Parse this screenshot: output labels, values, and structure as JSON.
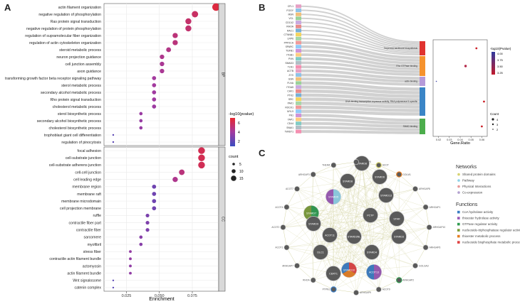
{
  "panels": {
    "a": "A",
    "b": "B",
    "c": "C"
  },
  "colors": {
    "grid": "#ebebeb",
    "strip": "#d9d9d9",
    "edge": "#d6d6a8",
    "node": "#5a5a5a"
  },
  "chart_data": [
    {
      "type": "scatter",
      "panel": "A",
      "xlabel": "Enrichment",
      "xlim": [
        0.008,
        0.095
      ],
      "xticks": [
        "0.025",
        "0.050",
        "0.075"
      ],
      "xtick_values": [
        0.025,
        0.05,
        0.075
      ],
      "color_legend_title": "-log10(pvalue)",
      "color_legend_ticks": [
        "6",
        "4",
        "2"
      ],
      "size_legend_title": "count",
      "size_legend_ticks": [
        "5",
        "10",
        "15"
      ],
      "facets": [
        {
          "strip": "BP",
          "terms": [
            {
              "label": "actin filament organization",
              "x": 0.093,
              "c": 7.0
            },
            {
              "label": "negative regulation of phosphorylation",
              "x": 0.077,
              "c": 6.0
            },
            {
              "label": "Ras protein signal transduction",
              "x": 0.072,
              "c": 5.8
            },
            {
              "label": "negative regulation of protein phosphorylation",
              "x": 0.072,
              "c": 5.7
            },
            {
              "label": "regulation of supramolecular fiber organization",
              "x": 0.062,
              "c": 5.4
            },
            {
              "label": "regulation of actin cytoskeleton organization",
              "x": 0.062,
              "c": 5.3
            },
            {
              "label": "steroid metabolic process",
              "x": 0.057,
              "c": 5.0
            },
            {
              "label": "neuron projection guidance",
              "x": 0.052,
              "c": 4.8
            },
            {
              "label": "cell junction assembly",
              "x": 0.052,
              "c": 4.6
            },
            {
              "label": "axon guidance",
              "x": 0.052,
              "c": 4.6
            },
            {
              "label": "transforming growth factor beta receptor signaling pathway",
              "x": 0.046,
              "c": 4.3
            },
            {
              "label": "sterol metabolic process",
              "x": 0.046,
              "c": 4.3
            },
            {
              "label": "secondary alcohol metabolic process",
              "x": 0.046,
              "c": 4.2
            },
            {
              "label": "Rho protein signal transduction",
              "x": 0.046,
              "c": 4.2
            },
            {
              "label": "cholesterol metabolic process",
              "x": 0.046,
              "c": 4.1
            },
            {
              "label": "sterol biosynthetic process",
              "x": 0.036,
              "c": 4.0
            },
            {
              "label": "secondary alcohol biosynthetic process",
              "x": 0.036,
              "c": 3.9
            },
            {
              "label": "cholesterol biosynthetic process",
              "x": 0.036,
              "c": 3.9
            },
            {
              "label": "trophoblast giant cell differentiation",
              "x": 0.015,
              "c": 2.0
            },
            {
              "label": "regulation of pinocytosis",
              "x": 0.015,
              "c": 2.0
            }
          ]
        },
        {
          "strip": "CC",
          "terms": [
            {
              "label": "focal adhesion",
              "x": 0.082,
              "c": 6.5
            },
            {
              "label": "cell-substrate junction",
              "x": 0.082,
              "c": 6.5
            },
            {
              "label": "cell-substrate adherens junction",
              "x": 0.082,
              "c": 6.4
            },
            {
              "label": "cell-cell junction",
              "x": 0.067,
              "c": 5.3
            },
            {
              "label": "cell leading edge",
              "x": 0.062,
              "c": 4.8
            },
            {
              "label": "membrane region",
              "x": 0.046,
              "c": 2.6
            },
            {
              "label": "membrane raft",
              "x": 0.046,
              "c": 2.6
            },
            {
              "label": "membrane microdomain",
              "x": 0.046,
              "c": 2.6
            },
            {
              "label": "cell projection membrane",
              "x": 0.046,
              "c": 2.7
            },
            {
              "label": "ruffle",
              "x": 0.041,
              "c": 3.0
            },
            {
              "label": "contractile fiber part",
              "x": 0.041,
              "c": 3.1
            },
            {
              "label": "contractile fiber",
              "x": 0.041,
              "c": 3.1
            },
            {
              "label": "sarcomere",
              "x": 0.036,
              "c": 3.4
            },
            {
              "label": "myofibril",
              "x": 0.036,
              "c": 3.4
            },
            {
              "label": "stress fiber",
              "x": 0.028,
              "c": 3.8
            },
            {
              "label": "contractile actin filament bundle",
              "x": 0.028,
              "c": 3.8
            },
            {
              "label": "actomyosin",
              "x": 0.028,
              "c": 3.7
            },
            {
              "label": "actin filament bundle",
              "x": 0.028,
              "c": 3.7
            },
            {
              "label": "Wnt signalosome",
              "x": 0.015,
              "c": 2.0
            },
            {
              "label": "catenin complex",
              "x": 0.015,
              "c": 2.0
            }
          ]
        }
      ]
    },
    {
      "type": "scatter",
      "panel": "B",
      "xlabel": "Gene.Ratio",
      "xlim": [
        0.015,
        0.065
      ],
      "xticks": [
        "0.02",
        "0.03",
        "0.04",
        "0.05",
        "0.06"
      ],
      "xtick_values": [
        0.02,
        0.03,
        0.04,
        0.05,
        0.06
      ],
      "color_legend_title": "-log10(Pvalue)",
      "color_legend_ticks": [
        "4.00",
        "3.75",
        "3.50",
        "3.25"
      ],
      "size_legend_title": "Count",
      "size_legend_ticks": [
        "4",
        "3",
        "2"
      ],
      "genes": [
        "CFL1",
        "FGGY",
        "MSN",
        "VCL",
        "CDC42",
        "RHOA",
        "RAC1",
        "CTNNB1",
        "LRP6",
        "PPP2CA",
        "SPARC",
        "TGFB1",
        "ITGB1",
        "PXN",
        "SMAD3",
        "TLN1",
        "ACTB",
        "ZYX",
        "GSN",
        "FLNA",
        "ITGA5",
        "CAV1",
        "PTK2",
        "SRC",
        "PAK1",
        "ROCK1",
        "MYL9",
        "FN1",
        "YAP1",
        "CD44",
        "SNAI1",
        "TWIST1"
      ],
      "terms": [
        {
          "label": "Terpenoid backbone biosynthesis",
          "x": 0.055,
          "c": 3.3,
          "color": "#e0332f"
        },
        {
          "label": "Rho GTPase binding",
          "x": 0.045,
          "c": 3.6,
          "color": "#f5922d"
        },
        {
          "label": "actin binding",
          "x": 0.018,
          "c": 4.0,
          "color": "#b59ad9"
        },
        {
          "label": "DNA-binding transcription repressor activity, RNA polymerase II-specific",
          "x": 0.062,
          "c": 3.3,
          "color": "#3a85c6"
        },
        {
          "label": "SMAD binding",
          "x": 0.06,
          "c": 3.3,
          "color": "#4cad4c"
        }
      ]
    }
  ],
  "network": {
    "legend_networks_title": "Networks",
    "networks": [
      {
        "label": "Shared protein domains",
        "color": "#d6d270"
      },
      {
        "label": "Pathway",
        "color": "#8fd2e8"
      },
      {
        "label": "Physical Interactions",
        "color": "#e79a9a"
      },
      {
        "label": "Co-expression",
        "color": "#b3a1cf"
      }
    ],
    "legend_functions_title": "Functions",
    "functions": [
      {
        "label": "CoA hydrolase activity",
        "color": "#3a7dc4"
      },
      {
        "label": "thioester hydrolase activity",
        "color": "#9b59b6"
      },
      {
        "label": "GTPase regulator activity",
        "color": "#2e9b4f"
      },
      {
        "label": "nucleoside-triphosphatase regulator activity",
        "color": "#7b9c3a"
      },
      {
        "label": "thioester metabolic process",
        "color": "#e67e22"
      },
      {
        "label": "nucleoside bisphosphate metabolic process",
        "color": "#e04343"
      }
    ],
    "center_nodes": [
      "STARD8",
      "STARD6",
      "STARD8",
      "STARD13",
      "STARD5",
      "PCTP",
      "STAR",
      "STARD3",
      "STARD4",
      "STARD10",
      "ACOT13",
      "ACOT11",
      "STARD7",
      "DLC1",
      "CERT1",
      "STARD9",
      "STARD3NL"
    ],
    "outer_nodes": [
      "ARHGAP5",
      "ACOT",
      "GOLM1",
      "ARHGAP8",
      "ARHGAP1",
      "ARHGAP10",
      "ARHGAP6",
      "GOLGA3",
      "ARHGAP2",
      "ACOT9",
      "ARHGAP9",
      "PTPN1",
      "RHOA",
      "ARHGAP7",
      "ACOT1",
      "ACOT2",
      "ACOT4",
      "ACOT7",
      "ARHGAP3",
      "THEM4"
    ]
  }
}
